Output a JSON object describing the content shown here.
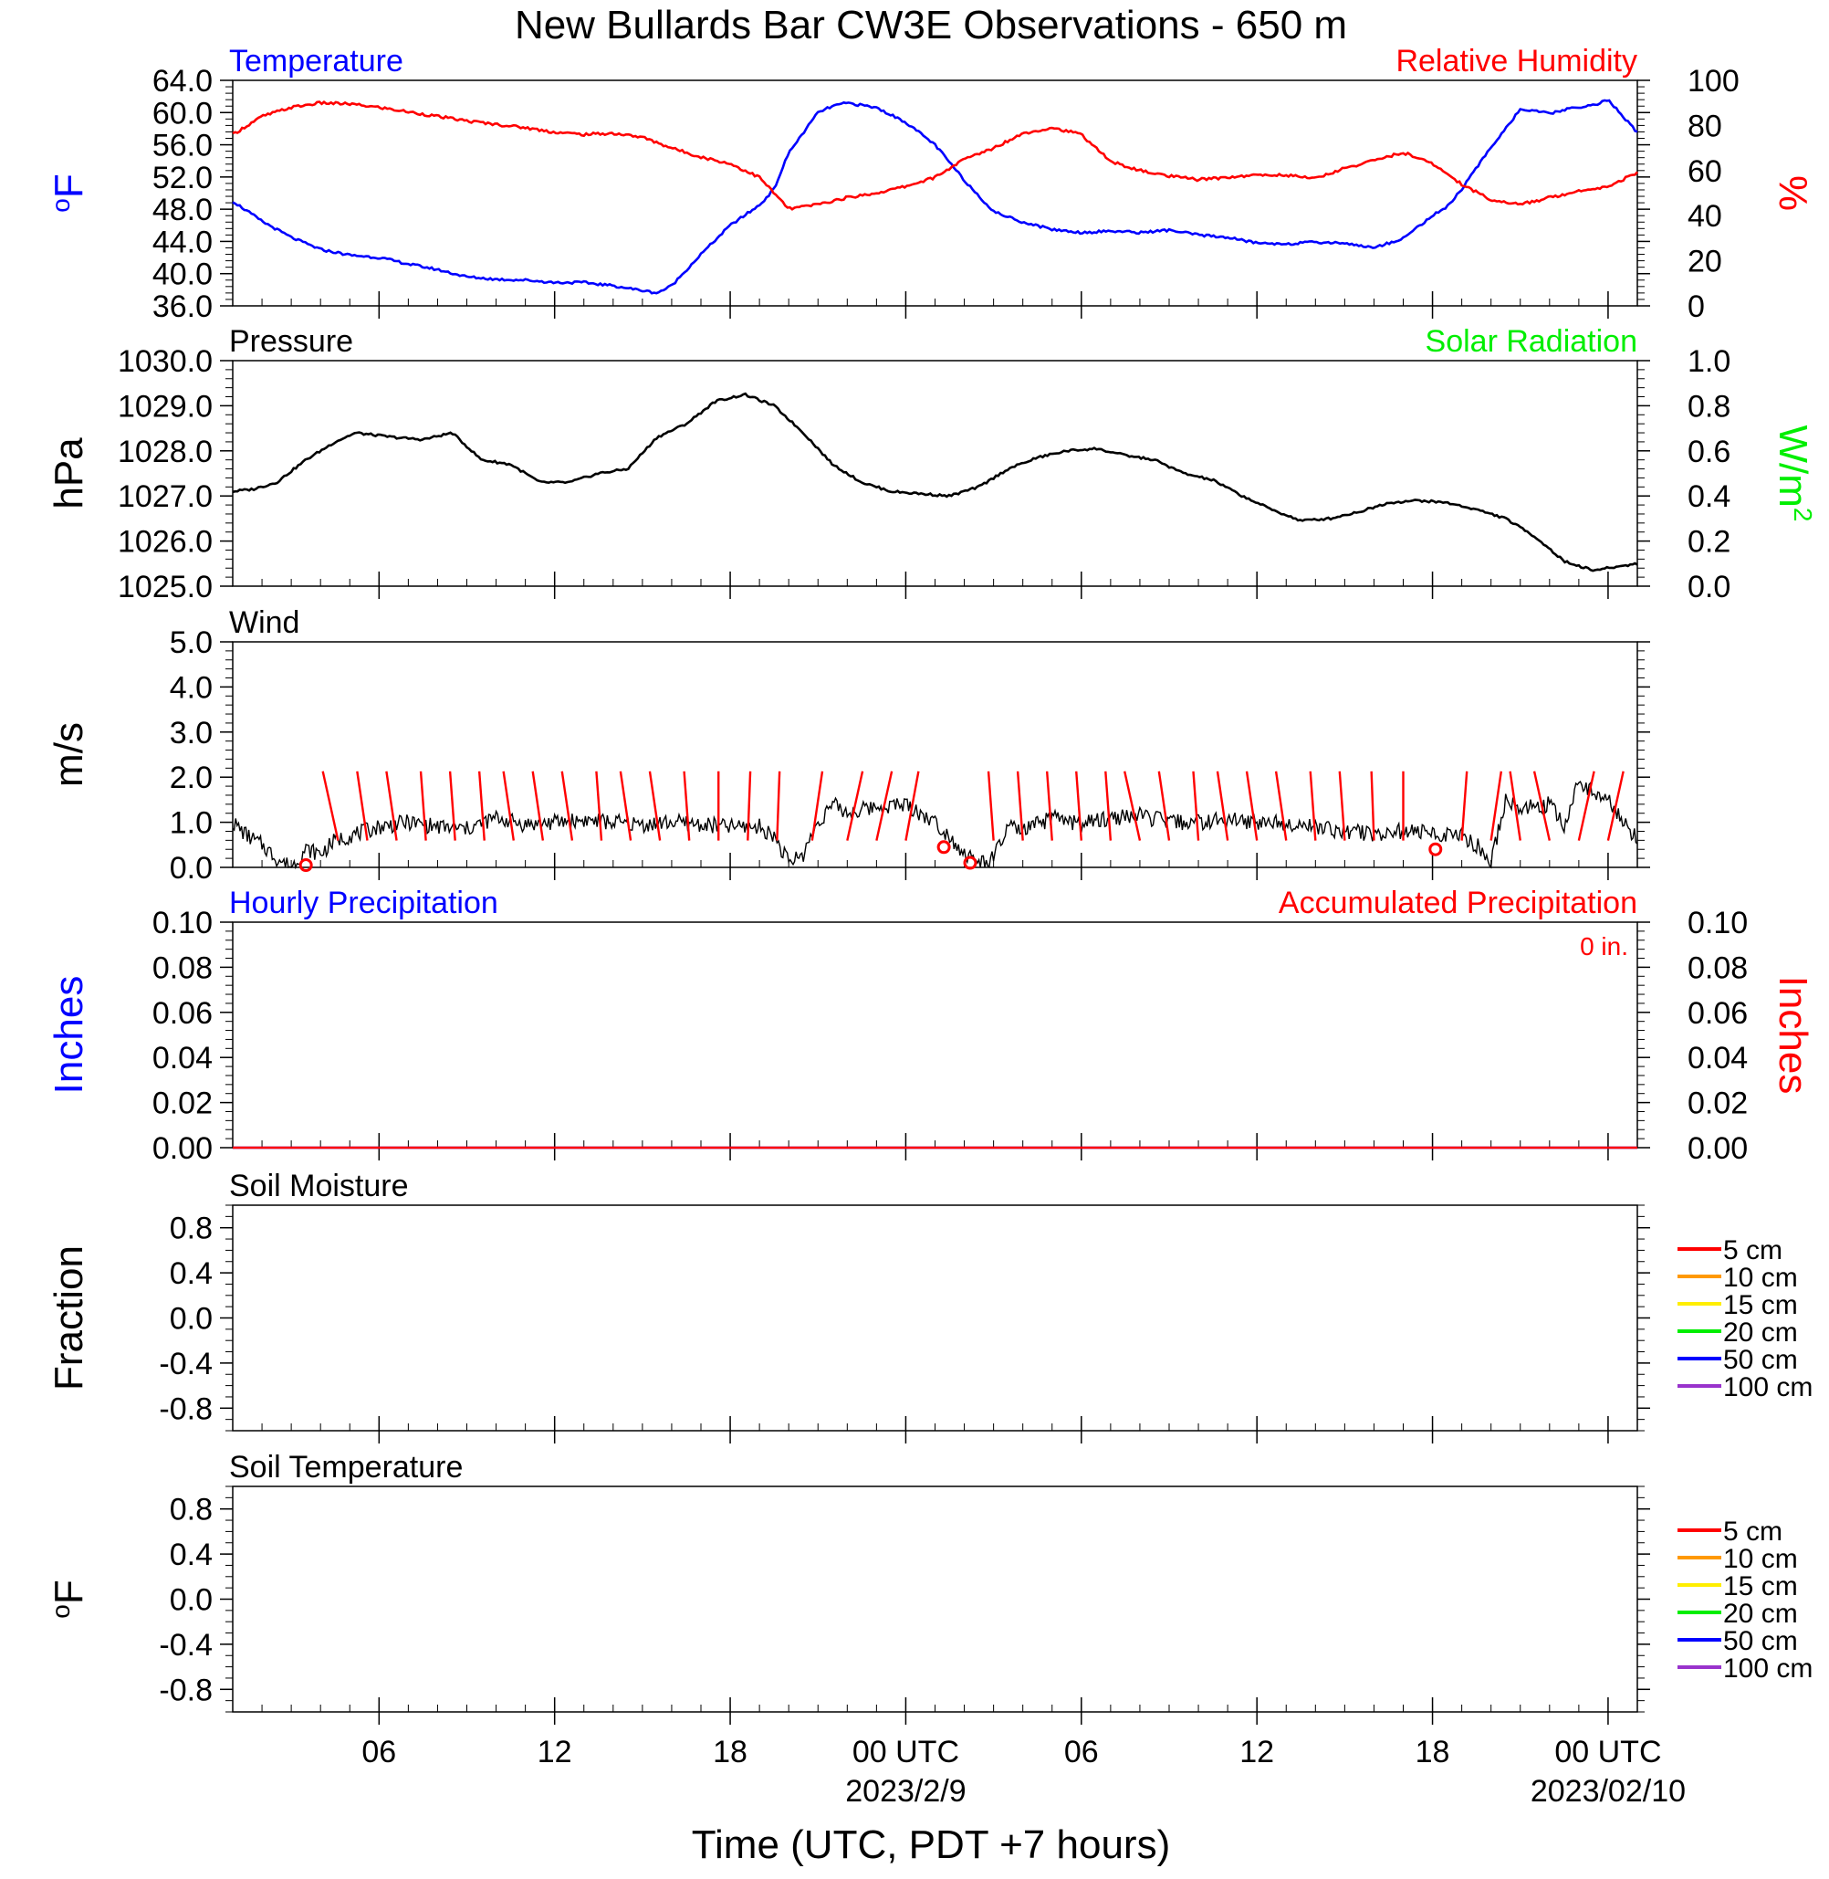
{
  "title": "New Bullards Bar CW3E Observations - 650 m",
  "x_axis": {
    "label": "Time (UTC, PDT +7 hours)",
    "range_hours": [
      0,
      48
    ],
    "ticks": [
      {
        "h": 5,
        "label": ""
      },
      {
        "h": 11,
        "label": ""
      },
      {
        "h": 17,
        "label": ""
      },
      {
        "h": 23,
        "label": "00 UTC",
        "sub": "2023/2/9"
      },
      {
        "h": 29,
        "label": "06",
        "sub": ""
      },
      {
        "h": 35,
        "label": "12",
        "sub": ""
      },
      {
        "h": 41,
        "label": "18",
        "sub": ""
      },
      {
        "h": 47,
        "label": "00 UTC",
        "sub": "2023/02/10"
      }
    ],
    "label_ticks": [
      {
        "h": 5,
        "label": "06"
      },
      {
        "h": 11,
        "label": "12"
      },
      {
        "h": 17,
        "label": "18"
      },
      {
        "h": 23,
        "label": "00 UTC"
      },
      {
        "h": 29,
        "label": "06"
      },
      {
        "h": 35,
        "label": "12"
      },
      {
        "h": 41,
        "label": "18"
      },
      {
        "h": 47,
        "label": "00 UTC"
      }
    ],
    "date_labels": [
      {
        "h": 23,
        "label": "2023/2/9"
      },
      {
        "h": 47,
        "label": "2023/02/10"
      }
    ]
  },
  "colors": {
    "temperature": "#0000ff",
    "humidity": "#ff0000",
    "pressure": "#000000",
    "solar": "#00ee00",
    "wind": "#000000",
    "barbs": "#ff0000",
    "hourly_precip": "#0000ff",
    "accum_precip": "#ff0000",
    "soil_5": "#ff0000",
    "soil_10": "#ff9900",
    "soil_15": "#ffee00",
    "soil_20": "#00ee00",
    "soil_50": "#0000ff",
    "soil_100": "#9933cc"
  },
  "chart_data": [
    {
      "id": "temp_rh",
      "type": "line",
      "left_title": "Temperature",
      "right_title": "Relative Humidity",
      "ylabel_left": "oF",
      "ylabel_right": "%",
      "ylim_left": [
        36,
        64
      ],
      "ylim_right": [
        0,
        100
      ],
      "yticks_left": [
        "64.0",
        "60.0",
        "56.0",
        "52.0",
        "48.0",
        "44.0",
        "40.0",
        "36.0"
      ],
      "yticks_right": [
        "100",
        "80",
        "60",
        "40",
        "20",
        "0"
      ],
      "series": [
        {
          "name": "Temperature",
          "axis": "left",
          "x": [
            0,
            1,
            2,
            3,
            4,
            5,
            6,
            7,
            8,
            9,
            10,
            11,
            12,
            13,
            14,
            14.5,
            15,
            16,
            17,
            18,
            18.5,
            19,
            20,
            20.5,
            21,
            22,
            23,
            24,
            25,
            26,
            27,
            28,
            29,
            30,
            31,
            32,
            33,
            34,
            35,
            36,
            37,
            38,
            39,
            40,
            41,
            41.5,
            42,
            43,
            44,
            45,
            46,
            46.5,
            47,
            48
          ],
          "values": [
            49,
            46.5,
            44.5,
            43,
            42.3,
            42,
            41.2,
            40.5,
            39.6,
            39.3,
            39.2,
            38.9,
            38.9,
            38.5,
            37.9,
            37.6,
            38.5,
            42.4,
            46,
            48.5,
            50.5,
            55,
            60,
            60.8,
            61.2,
            60.6,
            58.8,
            56,
            51.6,
            47.7,
            46.4,
            45.5,
            45.1,
            45.3,
            45.1,
            45.4,
            44.8,
            44.5,
            43.8,
            43.7,
            43.9,
            43.8,
            43.2,
            44.4,
            47.2,
            48.3,
            50.5,
            55.7,
            60.4,
            59.9,
            60.7,
            60.9,
            61.6,
            57.5
          ]
        },
        {
          "name": "Relative Humidity",
          "axis": "right",
          "x": [
            0,
            1,
            2,
            3,
            4,
            5,
            6,
            7,
            8,
            9,
            10,
            11,
            12,
            13,
            14,
            15,
            16,
            17,
            18,
            19,
            20,
            21,
            22,
            23,
            24,
            25,
            26,
            27,
            28,
            29,
            30,
            31,
            32,
            33,
            34,
            35,
            36,
            37,
            38,
            39,
            40,
            41,
            42,
            43,
            44,
            45,
            46,
            47,
            48
          ],
          "values": [
            76,
            84,
            88,
            90,
            89.5,
            88,
            86,
            84,
            82,
            80.5,
            79,
            77,
            76,
            76.5,
            74.8,
            70,
            66,
            63,
            57,
            43,
            45,
            48,
            50,
            53,
            57,
            65,
            70,
            76.5,
            79,
            76,
            64,
            60,
            57.5,
            56,
            57,
            58,
            58,
            56.5,
            61,
            64.5,
            68,
            63,
            54,
            47,
            45,
            48,
            51,
            53,
            59
          ]
        }
      ]
    },
    {
      "id": "pressure_solar",
      "type": "line",
      "left_title": "Pressure",
      "right_title": "Solar Radiation",
      "ylabel_left": "hPa",
      "ylabel_right": "W/m2",
      "ylim_left": [
        1025,
        1030
      ],
      "ylim_right": [
        0,
        1
      ],
      "yticks_left": [
        "1030.0",
        "1029.0",
        "1028.0",
        "1027.0",
        "1026.0",
        "1025.0"
      ],
      "yticks_right": [
        "1.0",
        "0.8",
        "0.6",
        "0.4",
        "0.2",
        "0.0"
      ],
      "series": [
        {
          "name": "Pressure",
          "axis": "left",
          "x": [
            0,
            0.7,
            1.5,
            2.5,
            3.5,
            4.2,
            5.5,
            6.5,
            7.5,
            8.5,
            9.5,
            10.5,
            11.5,
            12.5,
            13.5,
            14.5,
            15.5,
            16.5,
            17.5,
            18.5,
            19.5,
            20.5,
            21.5,
            22.5,
            23.5,
            24.5,
            25.5,
            26.5,
            27.5,
            28.5,
            29.5,
            30.5,
            31.5,
            32.5,
            33.5,
            34.5,
            35.5,
            36.5,
            37.5,
            38.5,
            39.5,
            40.5,
            41.5,
            42.5,
            43.5,
            44.5,
            45.5,
            46.5,
            47.5,
            48
          ],
          "values": [
            1027.1,
            1027.15,
            1027.3,
            1027.8,
            1028.2,
            1028.4,
            1028.3,
            1028.25,
            1028.4,
            1027.8,
            1027.7,
            1027.3,
            1027.3,
            1027.5,
            1027.6,
            1028.3,
            1028.6,
            1029.1,
            1029.25,
            1029.0,
            1028.4,
            1027.7,
            1027.3,
            1027.1,
            1027.05,
            1027.0,
            1027.2,
            1027.6,
            1027.85,
            1028.0,
            1028.05,
            1027.9,
            1027.8,
            1027.5,
            1027.35,
            1027.0,
            1026.7,
            1026.45,
            1026.5,
            1026.65,
            1026.85,
            1026.9,
            1026.85,
            1026.7,
            1026.5,
            1026.1,
            1025.55,
            1025.35,
            1025.45,
            1025.5
          ]
        }
      ]
    },
    {
      "id": "wind",
      "type": "line",
      "left_title": "Wind",
      "ylabel_left": "m/s",
      "ylim_left": [
        0,
        5
      ],
      "yticks_left": [
        "5.0",
        "4.0",
        "3.0",
        "2.0",
        "1.0",
        "0.0"
      ],
      "series": [
        {
          "name": "Wind",
          "axis": "left",
          "x": [
            0,
            0.5,
            1,
            1.5,
            2,
            2.5,
            3,
            3.5,
            4,
            5,
            6,
            7,
            8,
            9,
            10,
            11,
            12,
            13,
            14,
            15,
            16,
            17,
            18,
            18.5,
            19,
            19.5,
            20,
            20.5,
            21,
            22,
            23,
            24,
            24.5,
            25,
            25.5,
            26,
            26.5,
            27,
            28,
            29,
            30,
            31,
            32,
            33,
            34,
            35,
            36,
            37,
            38,
            39,
            40,
            41,
            42,
            42.5,
            43,
            43.5,
            44,
            45,
            45.5,
            46,
            47,
            48
          ],
          "values": [
            1.0,
            0.7,
            0.5,
            0.2,
            0.0,
            0.4,
            0.3,
            0.6,
            0.7,
            0.9,
            1.0,
            0.9,
            0.85,
            1.1,
            0.95,
            1.0,
            1.05,
            1.0,
            0.95,
            1.0,
            0.95,
            0.9,
            0.9,
            0.7,
            0.1,
            0.3,
            1.0,
            1.4,
            1.2,
            1.35,
            1.4,
            1.0,
            0.7,
            0.3,
            0.1,
            0.2,
            0.9,
            0.8,
            1.1,
            0.95,
            1.1,
            1.15,
            1.0,
            1.0,
            1.05,
            1.0,
            1.0,
            0.9,
            0.8,
            0.75,
            0.8,
            0.75,
            0.7,
            0.5,
            0.1,
            1.5,
            1.3,
            1.4,
            0.9,
            1.9,
            1.5,
            0.6
          ]
        }
      ],
      "barbs": [
        {
          "h": 2.5,
          "calm": true
        },
        {
          "h": 3.6,
          "dx": -0.3,
          "dy": 1.0
        },
        {
          "h": 4.6,
          "dx": -0.2,
          "dy": 1.0
        },
        {
          "h": 5.6,
          "dx": -0.2,
          "dy": 1.0
        },
        {
          "h": 6.6,
          "dx": -0.1,
          "dy": 1.0
        },
        {
          "h": 7.6,
          "dx": -0.1,
          "dy": 1.0
        },
        {
          "h": 8.6,
          "dx": -0.1,
          "dy": 1.0
        },
        {
          "h": 9.6,
          "dx": -0.2,
          "dy": 1.0
        },
        {
          "h": 10.6,
          "dx": -0.2,
          "dy": 1.0
        },
        {
          "h": 11.6,
          "dx": -0.2,
          "dy": 1.0
        },
        {
          "h": 12.6,
          "dx": -0.1,
          "dy": 1.0
        },
        {
          "h": 13.6,
          "dx": -0.2,
          "dy": 1.0
        },
        {
          "h": 14.6,
          "dx": -0.2,
          "dy": 1.0
        },
        {
          "h": 15.6,
          "dx": -0.1,
          "dy": 1.0
        },
        {
          "h": 16.6,
          "dx": 0.0,
          "dy": 1.0
        },
        {
          "h": 17.6,
          "dx": 0.05,
          "dy": 1.0
        },
        {
          "h": 18.6,
          "dx": 0.05,
          "dy": 1.0
        },
        {
          "h": 19.8,
          "dx": 0.2,
          "dy": 1.0
        },
        {
          "h": 21.0,
          "dx": 0.3,
          "dy": 1.0
        },
        {
          "h": 22.0,
          "dx": 0.3,
          "dy": 1.0
        },
        {
          "h": 23.0,
          "dx": 0.25,
          "dy": 1.0
        },
        {
          "h": 24.3,
          "calm": true
        },
        {
          "h": 25.2,
          "calm": true
        },
        {
          "h": 26.0,
          "dx": -0.1,
          "dy": 1.0
        },
        {
          "h": 27.0,
          "dx": -0.1,
          "dy": 1.0
        },
        {
          "h": 28.0,
          "dx": -0.1,
          "dy": 1.0
        },
        {
          "h": 29.0,
          "dx": -0.1,
          "dy": 1.0
        },
        {
          "h": 30.0,
          "dx": -0.1,
          "dy": 1.0
        },
        {
          "h": 31.0,
          "dx": -0.3,
          "dy": 1.0
        },
        {
          "h": 32.0,
          "dx": -0.2,
          "dy": 1.0
        },
        {
          "h": 33.0,
          "dx": -0.1,
          "dy": 1.0
        },
        {
          "h": 34.0,
          "dx": -0.2,
          "dy": 1.0
        },
        {
          "h": 35.0,
          "dx": -0.2,
          "dy": 1.0
        },
        {
          "h": 36.0,
          "dx": -0.2,
          "dy": 1.0
        },
        {
          "h": 37.0,
          "dx": -0.1,
          "dy": 1.0
        },
        {
          "h": 38.0,
          "dx": -0.1,
          "dy": 1.0
        },
        {
          "h": 39.0,
          "dx": -0.05,
          "dy": 1.0
        },
        {
          "h": 40.0,
          "dx": 0.0,
          "dy": 1.0
        },
        {
          "h": 41.1,
          "calm": true
        },
        {
          "h": 42.0,
          "dx": 0.1,
          "dy": 1.0
        },
        {
          "h": 43.0,
          "dx": 0.2,
          "dy": 1.0
        },
        {
          "h": 44.0,
          "dx": -0.2,
          "dy": 1.0
        },
        {
          "h": 45.0,
          "dx": -0.3,
          "dy": 1.0
        },
        {
          "h": 46.0,
          "dx": 0.3,
          "dy": 1.0
        },
        {
          "h": 47.0,
          "dx": 0.3,
          "dy": 1.0
        }
      ]
    },
    {
      "id": "precip",
      "type": "line",
      "left_title": "Hourly Precipitation",
      "right_title": "Accumulated Precipitation",
      "annotation": "0 in.",
      "ylabel_left": "Inches",
      "ylabel_right": "Inches",
      "ylim_left": [
        0,
        0.1
      ],
      "ylim_right": [
        0,
        0.1
      ],
      "yticks_left": [
        "0.10",
        "0.08",
        "0.06",
        "0.04",
        "0.02",
        "0.00"
      ],
      "yticks_right": [
        "0.10",
        "0.08",
        "0.06",
        "0.04",
        "0.02",
        "0.00"
      ],
      "series": [
        {
          "name": "Hourly Precipitation",
          "axis": "left",
          "x": [
            0,
            48
          ],
          "values": [
            0,
            0
          ]
        },
        {
          "name": "Accumulated Precipitation",
          "axis": "right",
          "x": [
            0,
            48
          ],
          "values": [
            0,
            0
          ]
        }
      ]
    },
    {
      "id": "soil_moisture",
      "type": "line",
      "left_title": "Soil Moisture",
      "ylabel_left": "Fraction",
      "ylim_left": [
        -1,
        1
      ],
      "yticks_left": [
        "0.8",
        "0.4",
        "0.0",
        "-0.4",
        "-0.8"
      ],
      "legend": [
        "5 cm",
        "10 cm",
        "15 cm",
        "20 cm",
        "50 cm",
        "100 cm"
      ],
      "series": []
    },
    {
      "id": "soil_temperature",
      "type": "line",
      "left_title": "Soil Temperature",
      "ylabel_left": "oF",
      "ylim_left": [
        -1,
        1
      ],
      "yticks_left": [
        "0.8",
        "0.4",
        "0.0",
        "-0.4",
        "-0.8"
      ],
      "legend": [
        "5 cm",
        "10 cm",
        "15 cm",
        "20 cm",
        "50 cm",
        "100 cm"
      ],
      "series": []
    }
  ]
}
